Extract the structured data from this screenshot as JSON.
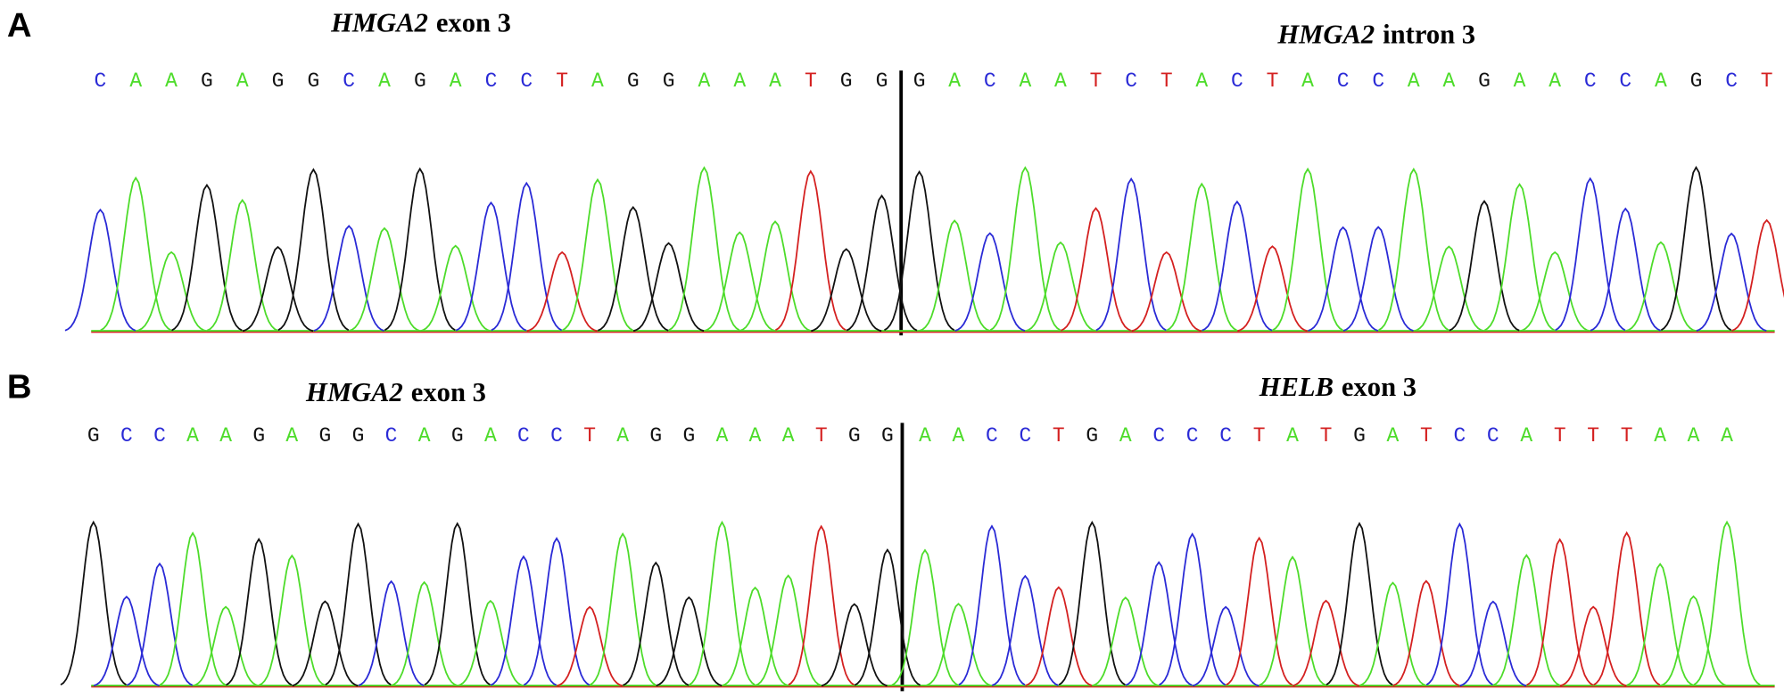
{
  "base_colors": {
    "A": "#4ddc2a",
    "C": "#2a2ad6",
    "G": "#111111",
    "T": "#d42020"
  },
  "panels": [
    {
      "label": "A",
      "left": {
        "gene": "HMGA2",
        "rest": "exon 3",
        "sequence": [
          "C",
          "A",
          "A",
          "G",
          "A",
          "G",
          "G",
          "C",
          "A",
          "G",
          "A",
          "C",
          "C",
          "T",
          "A",
          "G",
          "G",
          "A",
          "A",
          "A",
          "T",
          "G",
          "G"
        ]
      },
      "right": {
        "gene": "HMGA2",
        "rest": "intron 3",
        "sequence": [
          "G",
          "A",
          "C",
          "A",
          "A",
          "T",
          "C",
          "T",
          "A",
          "C",
          "T",
          "A",
          "C",
          "C",
          "A",
          "A",
          "G",
          "A",
          "A",
          "C",
          "C",
          "A",
          "G",
          "C",
          "T"
        ]
      }
    },
    {
      "label": "B",
      "left": {
        "gene": "HMGA2",
        "rest": "exon 3",
        "sequence": [
          "G",
          "C",
          "C",
          "A",
          "A",
          "G",
          "A",
          "G",
          "G",
          "C",
          "A",
          "G",
          "A",
          "C",
          "C",
          "T",
          "A",
          "G",
          "G",
          "A",
          "A",
          "A",
          "T",
          "G",
          "G"
        ]
      },
      "right": {
        "gene": "HELB",
        "rest": "exon 3",
        "sequence": [
          "A",
          "A",
          "C",
          "C",
          "T",
          "G",
          "A",
          "C",
          "C",
          "C",
          "T",
          "A",
          "T",
          "G",
          "A",
          "T",
          "C",
          "C",
          "A",
          "T",
          "T",
          "T",
          "A",
          "A",
          "A"
        ]
      }
    }
  ]
}
